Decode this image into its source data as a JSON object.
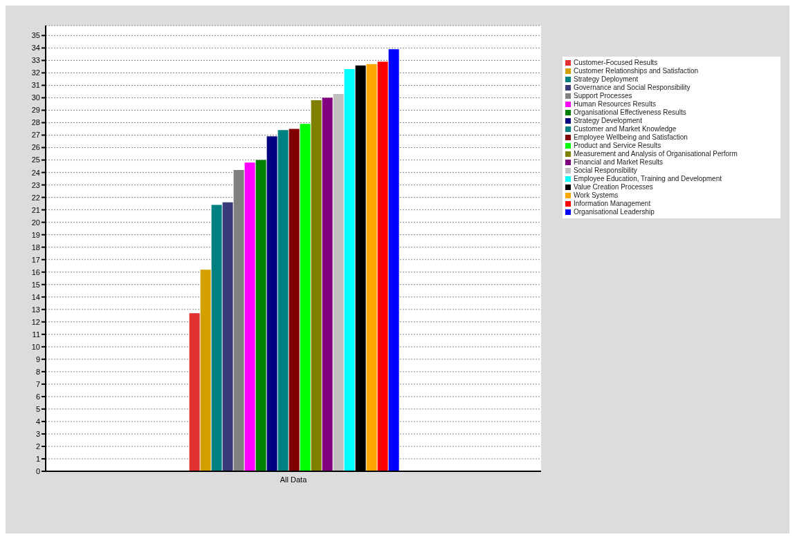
{
  "chart_data": {
    "type": "bar",
    "categories": [
      "All Data"
    ],
    "series": [
      {
        "name": "Customer-Focused Results",
        "color": "#e03030",
        "values": [
          12.7
        ]
      },
      {
        "name": "Customer Relationships and Satisfaction",
        "color": "#d4a000",
        "values": [
          16.2
        ]
      },
      {
        "name": "Strategy Deployment",
        "color": "#008080",
        "values": [
          21.4
        ]
      },
      {
        "name": "Governance and Social Responsibility",
        "color": "#3a3a7a",
        "values": [
          21.6
        ]
      },
      {
        "name": "Support Processes",
        "color": "#808080",
        "values": [
          24.2
        ]
      },
      {
        "name": "Human Resources Results",
        "color": "#ff00ff",
        "values": [
          24.8
        ]
      },
      {
        "name": "Organisational Effectiveness Results",
        "color": "#008000",
        "values": [
          25.0
        ]
      },
      {
        "name": "Strategy Development",
        "color": "#000080",
        "values": [
          26.9
        ]
      },
      {
        "name": "Customer and Market Knowledge",
        "color": "#008080",
        "values": [
          27.4
        ]
      },
      {
        "name": "Employee Wellbeing and Satisfaction",
        "color": "#800000",
        "values": [
          27.5
        ]
      },
      {
        "name": "Product and Service Results",
        "color": "#00ff00",
        "values": [
          27.9
        ]
      },
      {
        "name": "Measurement and Analysis of Organisational Perform",
        "color": "#808000",
        "values": [
          29.8
        ]
      },
      {
        "name": "Financial and Market Results",
        "color": "#800080",
        "values": [
          30.0
        ]
      },
      {
        "name": "Social Responsibility",
        "color": "#c0c0c0",
        "values": [
          30.3
        ]
      },
      {
        "name": "Employee Education, Training and Development",
        "color": "#00ffff",
        "values": [
          32.3
        ]
      },
      {
        "name": "Value Creation Processes",
        "color": "#000000",
        "values": [
          32.6
        ]
      },
      {
        "name": "Work Systems",
        "color": "#ffa500",
        "values": [
          32.7
        ]
      },
      {
        "name": "Information Management",
        "color": "#ff0000",
        "values": [
          32.9
        ]
      },
      {
        "name": "Organisational Leadership",
        "color": "#0000ff",
        "values": [
          33.9
        ]
      }
    ],
    "ylim": [
      0,
      35.8
    ],
    "yticks": [
      0,
      1,
      2,
      3,
      4,
      5,
      6,
      7,
      8,
      9,
      10,
      11,
      12,
      13,
      14,
      15,
      16,
      17,
      18,
      19,
      20,
      21,
      22,
      23,
      24,
      25,
      26,
      27,
      28,
      29,
      30,
      31,
      32,
      33,
      34,
      35
    ],
    "grid": "y",
    "legend": "right"
  }
}
